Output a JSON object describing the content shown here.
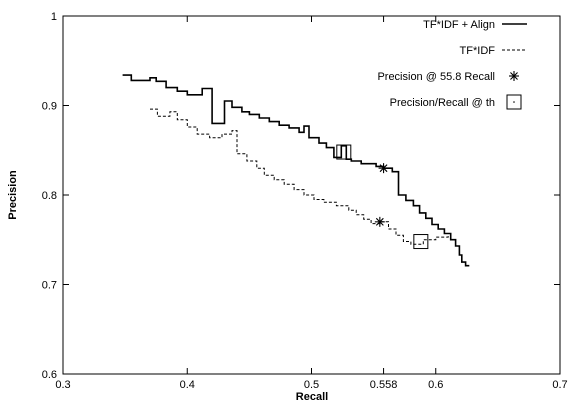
{
  "chart_data": {
    "type": "line",
    "xlabel": "Recall",
    "ylabel": "Precision",
    "xlim": [
      0.3,
      0.7
    ],
    "ylim": [
      0.6,
      1.0
    ],
    "xticks": [
      0.3,
      0.4,
      0.5,
      0.558,
      0.6,
      0.7
    ],
    "xtick_labels": [
      "0.3",
      "0.4",
      "0.5",
      "0.558",
      "0.6",
      "0.7"
    ],
    "yticks": [
      0.6,
      0.7,
      0.8,
      0.9,
      1.0
    ],
    "ytick_labels": [
      "0.6",
      "0.7",
      "0.8",
      "0.9",
      "1"
    ],
    "grid": false,
    "legend_position": "top-right",
    "series": [
      {
        "name": "TF*IDF + Align",
        "style": "solid",
        "points": [
          [
            0.348,
            0.934
          ],
          [
            0.355,
            0.934
          ],
          [
            0.355,
            0.928
          ],
          [
            0.37,
            0.928
          ],
          [
            0.37,
            0.931
          ],
          [
            0.375,
            0.931
          ],
          [
            0.375,
            0.927
          ],
          [
            0.383,
            0.927
          ],
          [
            0.383,
            0.92
          ],
          [
            0.392,
            0.92
          ],
          [
            0.392,
            0.916
          ],
          [
            0.4,
            0.916
          ],
          [
            0.4,
            0.912
          ],
          [
            0.412,
            0.912
          ],
          [
            0.412,
            0.919
          ],
          [
            0.42,
            0.919
          ],
          [
            0.42,
            0.88
          ],
          [
            0.43,
            0.88
          ],
          [
            0.43,
            0.905
          ],
          [
            0.436,
            0.905
          ],
          [
            0.436,
            0.898
          ],
          [
            0.444,
            0.898
          ],
          [
            0.444,
            0.893
          ],
          [
            0.45,
            0.893
          ],
          [
            0.45,
            0.89
          ],
          [
            0.458,
            0.89
          ],
          [
            0.458,
            0.886
          ],
          [
            0.466,
            0.886
          ],
          [
            0.466,
            0.882
          ],
          [
            0.474,
            0.882
          ],
          [
            0.474,
            0.878
          ],
          [
            0.482,
            0.878
          ],
          [
            0.482,
            0.875
          ],
          [
            0.49,
            0.875
          ],
          [
            0.49,
            0.87
          ],
          [
            0.494,
            0.87
          ],
          [
            0.494,
            0.877
          ],
          [
            0.498,
            0.877
          ],
          [
            0.498,
            0.864
          ],
          [
            0.506,
            0.864
          ],
          [
            0.506,
            0.858
          ],
          [
            0.512,
            0.858
          ],
          [
            0.512,
            0.853
          ],
          [
            0.518,
            0.853
          ],
          [
            0.518,
            0.842
          ],
          [
            0.524,
            0.842
          ],
          [
            0.524,
            0.855
          ],
          [
            0.528,
            0.855
          ],
          [
            0.528,
            0.84
          ],
          [
            0.532,
            0.84
          ],
          [
            0.532,
            0.838
          ],
          [
            0.54,
            0.838
          ],
          [
            0.54,
            0.835
          ],
          [
            0.552,
            0.835
          ],
          [
            0.552,
            0.832
          ],
          [
            0.558,
            0.832
          ],
          [
            0.558,
            0.83
          ],
          [
            0.565,
            0.83
          ],
          [
            0.565,
            0.826
          ],
          [
            0.57,
            0.826
          ],
          [
            0.57,
            0.8
          ],
          [
            0.576,
            0.8
          ],
          [
            0.576,
            0.794
          ],
          [
            0.582,
            0.794
          ],
          [
            0.582,
            0.788
          ],
          [
            0.587,
            0.788
          ],
          [
            0.587,
            0.78
          ],
          [
            0.592,
            0.78
          ],
          [
            0.592,
            0.774
          ],
          [
            0.597,
            0.774
          ],
          [
            0.597,
            0.767
          ],
          [
            0.602,
            0.767
          ],
          [
            0.602,
            0.762
          ],
          [
            0.607,
            0.762
          ],
          [
            0.607,
            0.757
          ],
          [
            0.612,
            0.757
          ],
          [
            0.612,
            0.75
          ],
          [
            0.616,
            0.75
          ],
          [
            0.616,
            0.743
          ],
          [
            0.619,
            0.743
          ],
          [
            0.619,
            0.733
          ],
          [
            0.621,
            0.733
          ],
          [
            0.621,
            0.725
          ],
          [
            0.624,
            0.725
          ],
          [
            0.624,
            0.721
          ],
          [
            0.627,
            0.721
          ]
        ]
      },
      {
        "name": "TF*IDF",
        "style": "dashed",
        "points": [
          [
            0.37,
            0.896
          ],
          [
            0.376,
            0.896
          ],
          [
            0.376,
            0.888
          ],
          [
            0.386,
            0.888
          ],
          [
            0.386,
            0.893
          ],
          [
            0.392,
            0.893
          ],
          [
            0.392,
            0.884
          ],
          [
            0.4,
            0.884
          ],
          [
            0.4,
            0.876
          ],
          [
            0.408,
            0.876
          ],
          [
            0.408,
            0.868
          ],
          [
            0.418,
            0.868
          ],
          [
            0.418,
            0.864
          ],
          [
            0.428,
            0.864
          ],
          [
            0.428,
            0.868
          ],
          [
            0.436,
            0.868
          ],
          [
            0.436,
            0.872
          ],
          [
            0.44,
            0.872
          ],
          [
            0.44,
            0.846
          ],
          [
            0.448,
            0.846
          ],
          [
            0.448,
            0.838
          ],
          [
            0.456,
            0.838
          ],
          [
            0.456,
            0.83
          ],
          [
            0.462,
            0.83
          ],
          [
            0.462,
            0.822
          ],
          [
            0.47,
            0.822
          ],
          [
            0.47,
            0.817
          ],
          [
            0.478,
            0.817
          ],
          [
            0.478,
            0.812
          ],
          [
            0.486,
            0.812
          ],
          [
            0.486,
            0.806
          ],
          [
            0.494,
            0.806
          ],
          [
            0.494,
            0.8
          ],
          [
            0.502,
            0.8
          ],
          [
            0.502,
            0.795
          ],
          [
            0.51,
            0.795
          ],
          [
            0.51,
            0.792
          ],
          [
            0.52,
            0.792
          ],
          [
            0.52,
            0.788
          ],
          [
            0.53,
            0.788
          ],
          [
            0.53,
            0.783
          ],
          [
            0.536,
            0.783
          ],
          [
            0.536,
            0.778
          ],
          [
            0.542,
            0.778
          ],
          [
            0.542,
            0.773
          ],
          [
            0.548,
            0.773
          ],
          [
            0.548,
            0.768
          ],
          [
            0.556,
            0.768
          ],
          [
            0.556,
            0.77
          ],
          [
            0.562,
            0.77
          ],
          [
            0.562,
            0.762
          ],
          [
            0.568,
            0.762
          ],
          [
            0.568,
            0.755
          ],
          [
            0.574,
            0.755
          ],
          [
            0.574,
            0.748
          ],
          [
            0.58,
            0.748
          ],
          [
            0.58,
            0.745
          ],
          [
            0.59,
            0.745
          ],
          [
            0.59,
            0.75
          ],
          [
            0.6,
            0.75
          ],
          [
            0.6,
            0.753
          ],
          [
            0.61,
            0.753
          ],
          [
            0.61,
            0.755
          ]
        ]
      }
    ],
    "markers": [
      {
        "name": "Precision @ 55.8 Recall",
        "symbol": "asterisk",
        "points": [
          [
            0.558,
            0.83
          ],
          [
            0.555,
            0.77
          ]
        ]
      },
      {
        "name": "Precision/Recall @ th",
        "symbol": "square",
        "points": [
          [
            0.526,
            0.848
          ],
          [
            0.588,
            0.748
          ]
        ]
      }
    ]
  }
}
